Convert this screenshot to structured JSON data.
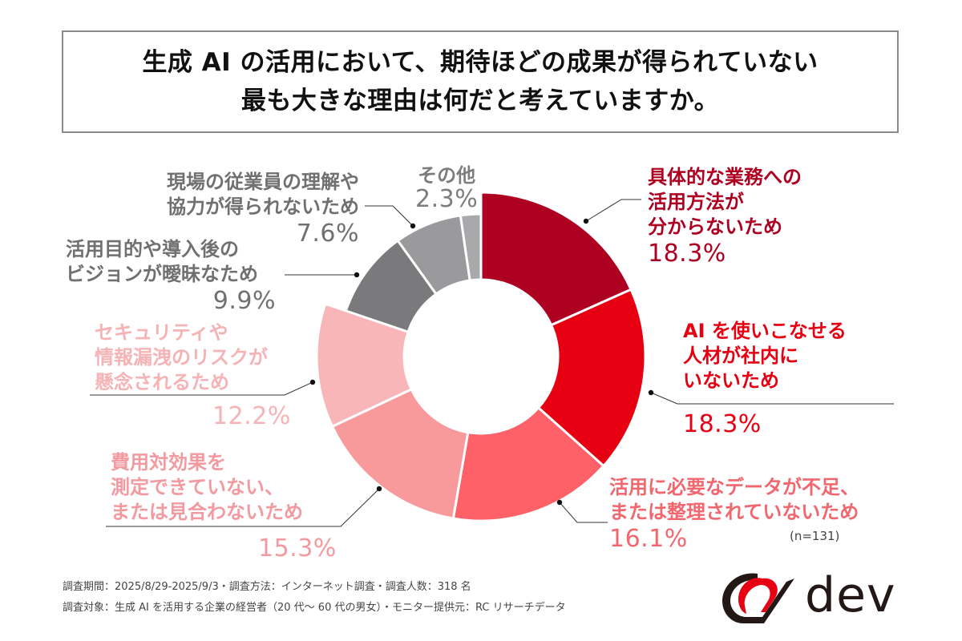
{
  "title": {
    "line1": "生成 AI の活用において、期待ほどの成果が得られていない",
    "line2": "最も大きな理由は何だと考えていますか。"
  },
  "chart_data": {
    "type": "pie",
    "subtype": "donut",
    "title": "生成 AI の活用において、期待ほどの成果が得られていない最も大きな理由は何だと考えていますか。",
    "n": 131,
    "categories": [
      "具体的な業務への活用方法が分からないため",
      "AI を使いこなせる人材が社内にいないため",
      "活用に必要なデータが不足、または整理されていないため",
      "費用対効果を測定できていない、または見合わないため",
      "セキュリティや情報漏洩のリスクが懸念されるため",
      "活用目的や導入後のビジョンが曖昧なため",
      "現場の従業員の理解や協力が得られないため",
      "その他"
    ],
    "values": [
      18.3,
      18.3,
      16.1,
      15.3,
      12.2,
      9.9,
      7.6,
      2.3
    ],
    "colors": [
      "#ae0021",
      "#e60012",
      "#ff6169",
      "#f8999c",
      "#f8b6b8",
      "#7a797b",
      "#9a999b",
      "#a9a8aa"
    ],
    "unit": "%",
    "start_angle": "12 o'clock, clockwise",
    "legend": "callout labels"
  },
  "labels": [
    {
      "lines": [
        "具体的な業務への",
        "活用方法が",
        "分からないため"
      ],
      "pct": "18.3%"
    },
    {
      "lines": [
        "AI を使いこなせる",
        "人材が社内に",
        "いないため"
      ],
      "pct": "18.3%"
    },
    {
      "lines": [
        "活用に必要なデータが不足、",
        "または整理されていないため"
      ],
      "pct": "16.1%"
    },
    {
      "lines": [
        "費用対効果を",
        "測定できていない、",
        "または見合わないため"
      ],
      "pct": "15.3%"
    },
    {
      "lines": [
        "セキュリティや",
        "情報漏洩のリスクが",
        "懸念されるため"
      ],
      "pct": "12.2%"
    },
    {
      "lines": [
        "活用目的や導入後の",
        "ビジョンが曖昧なため"
      ],
      "pct": "9.9%"
    },
    {
      "lines": [
        "現場の従業員の理解や",
        "協力が得られないため"
      ],
      "pct": "7.6%"
    },
    {
      "lines": [
        "その他"
      ],
      "pct": "2.3%"
    }
  ],
  "sample_note": "(n=131)",
  "footer": {
    "line1": "調査期間：2025/8/29-2025/9/3・調査方法：インターネット調査・調査人数：318 名",
    "line2": "調査対象：生成 AI を活用する企業の経営者（20 代～ 60 代の男女）・モニター提供元：RC リサーチデータ"
  },
  "logo": {
    "text": "dev",
    "colors": {
      "red": "#e60012",
      "dark": "#231815"
    }
  }
}
